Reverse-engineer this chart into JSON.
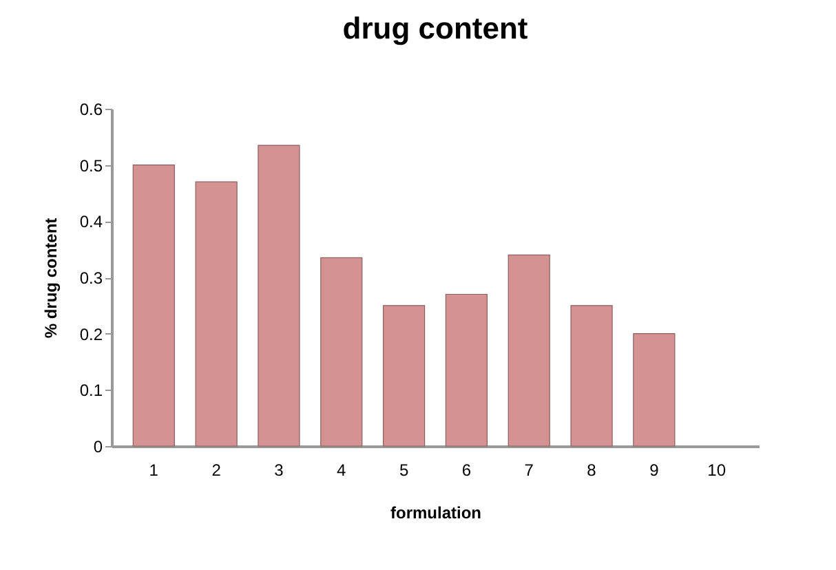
{
  "chart_data": {
    "type": "bar",
    "title": "drug content",
    "xlabel": "formulation",
    "ylabel": "% drug content",
    "categories": [
      "1",
      "2",
      "3",
      "4",
      "5",
      "6",
      "7",
      "8",
      "9",
      "10"
    ],
    "series": [
      {
        "color": "#d49392",
        "values": [
          0.5,
          0.47,
          0.535,
          0.335,
          0.25,
          0.27,
          0.34,
          0.25,
          0.2,
          null
        ]
      }
    ],
    "ylim": [
      0,
      0.6
    ],
    "yticks": [
      0,
      0.1,
      0.2,
      0.3,
      0.4,
      0.5,
      0.6
    ],
    "grid": false,
    "legend": false
  }
}
